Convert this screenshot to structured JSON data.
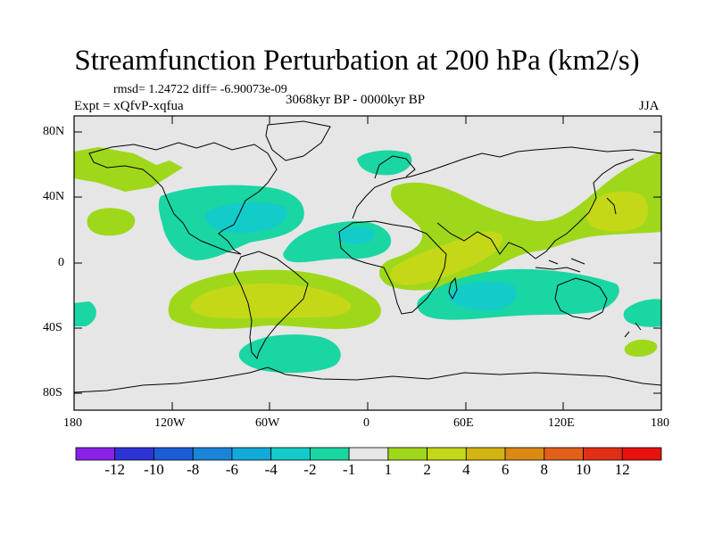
{
  "title": "Streamfunction Perturbation at 200 hPa (km2/s)",
  "stats": "rmsd= 1.24722 diff= -6.90073e-09",
  "experiment": "Expt = xQfvP-xqfua",
  "period": "3068kyr BP - 0000kyr BP",
  "season": "JJA",
  "lat_ticks": [
    "80N",
    "40N",
    "0",
    "40S",
    "80S"
  ],
  "lon_ticks": [
    "180",
    "120W",
    "60W",
    "0",
    "60E",
    "120E",
    "180"
  ],
  "colorbar": {
    "labels": [
      "-12",
      "-10",
      "-8",
      "-6",
      "-4",
      "-2",
      "-1",
      "1",
      "2",
      "4",
      "6",
      "8",
      "10",
      "12"
    ],
    "colors": [
      "#8b20e8",
      "#2e33d6",
      "#1a5ed6",
      "#1b84d8",
      "#13a9d8",
      "#13ccc9",
      "#1ad6a2",
      "#e6e6e6",
      "#9fd81b",
      "#c4d817",
      "#d4b410",
      "#dc8814",
      "#e2601a",
      "#e22e14",
      "#e8120c"
    ]
  }
}
